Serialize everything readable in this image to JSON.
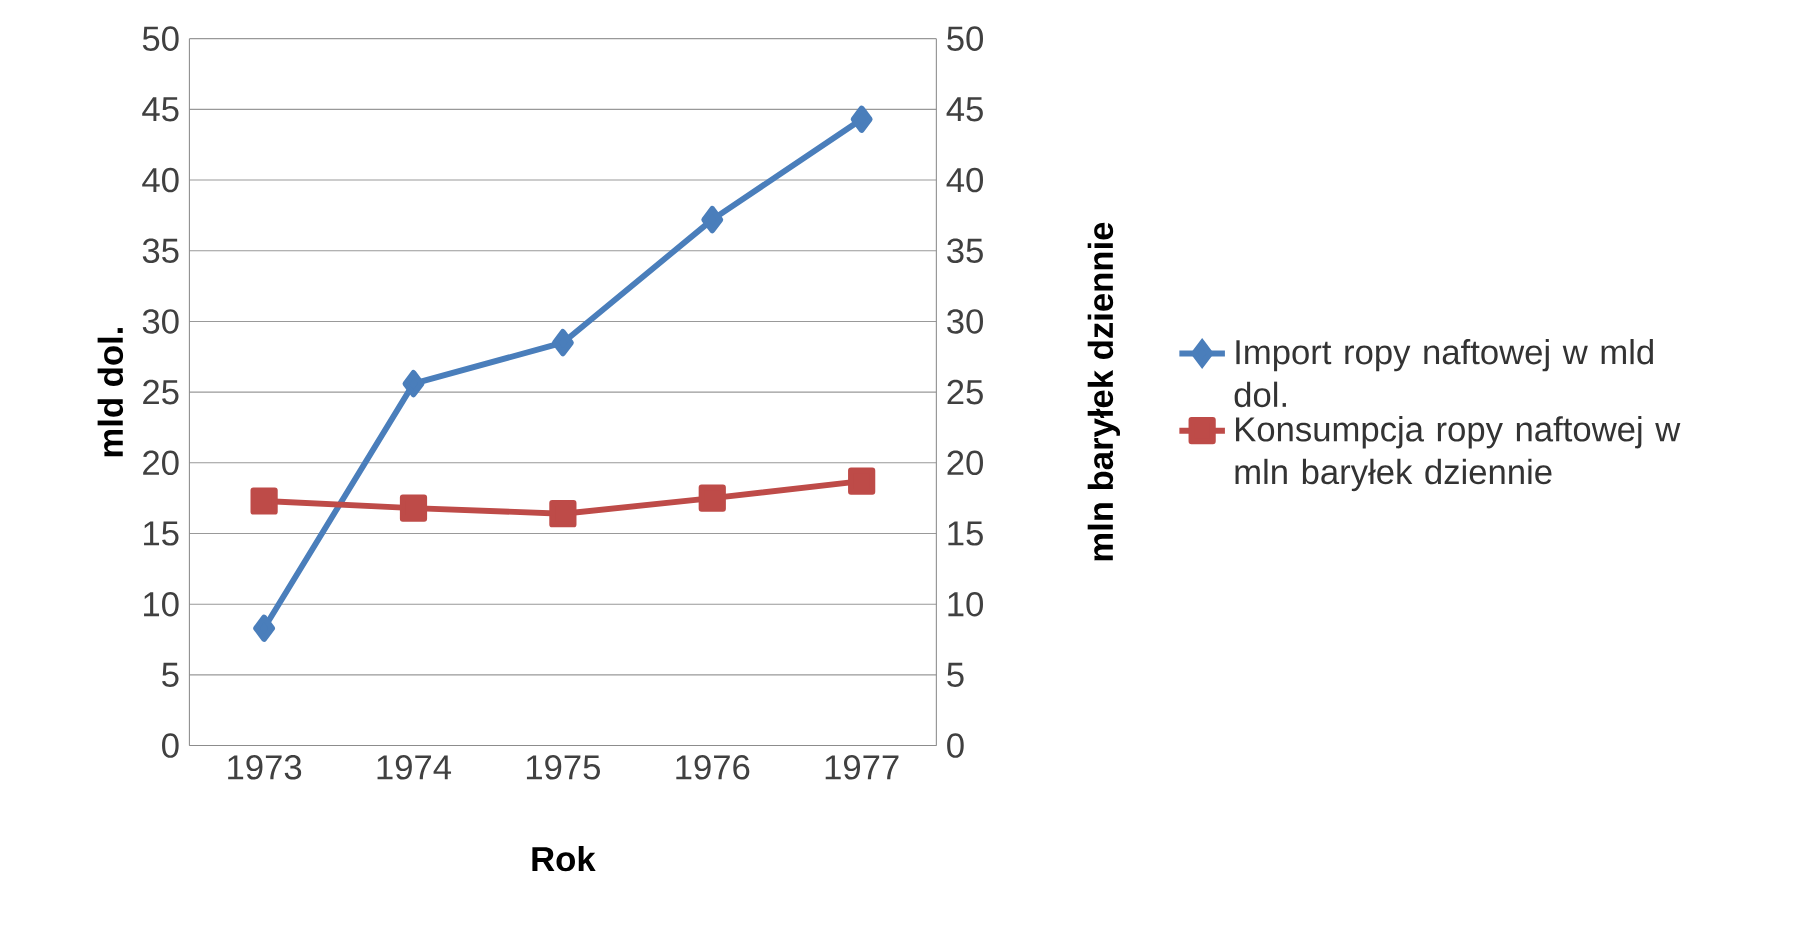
{
  "chart_data": {
    "type": "line",
    "xlabel": "Rok",
    "ylabel": "mld dol.",
    "y2label": "mln baryłek dziennie",
    "categories": [
      "1973",
      "1974",
      "1975",
      "1976",
      "1977"
    ],
    "series": [
      {
        "name": "Import ropy naftowej w mld dol.",
        "color": "#4a7ebb",
        "marker": "diamond",
        "values": [
          8.3,
          25.6,
          28.5,
          37.2,
          44.3
        ]
      },
      {
        "name": "Konsumpcja ropy naftowej w mln baryłek dziennie",
        "color": "#be4b48",
        "marker": "square",
        "axis": "y2",
        "values": [
          17.3,
          16.8,
          16.4,
          17.5,
          18.7
        ]
      }
    ],
    "ylim": [
      0,
      50
    ],
    "yticks": [
      0,
      5,
      10,
      15,
      20,
      25,
      30,
      35,
      40,
      45,
      50
    ],
    "y2lim": [
      0,
      50
    ],
    "y2ticks": [
      0,
      5,
      10,
      15,
      20,
      25,
      30,
      35,
      40,
      45,
      50
    ],
    "grid": "y",
    "legend": "right"
  }
}
